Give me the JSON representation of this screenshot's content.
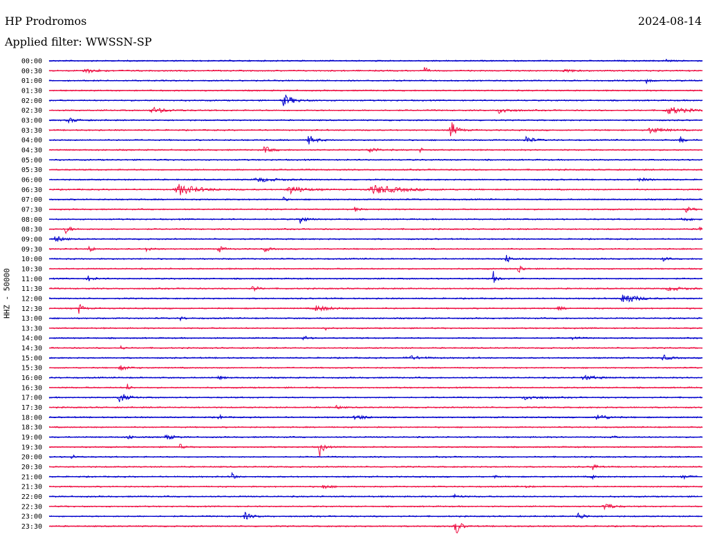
{
  "header": {
    "station": "HP Prodromos",
    "date": "2024-08-14",
    "filter": "Applied filter: WWSSN-SP"
  },
  "chart_data": {
    "type": "line",
    "title": "HP Prodromos",
    "ylabel": "HHZ - 50000",
    "colors": {
      "even": "#0000cc",
      "odd": "#ee1144"
    },
    "rows": [
      {
        "label": "00:00",
        "events": [
          {
            "t": 0.945,
            "a": 3,
            "w": 0.006
          }
        ]
      },
      {
        "label": "00:30",
        "events": [
          {
            "t": 0.055,
            "a": 3,
            "w": 0.03
          },
          {
            "t": 0.575,
            "a": 5,
            "w": 0.008
          },
          {
            "t": 0.79,
            "a": 3,
            "w": 0.015
          }
        ]
      },
      {
        "label": "01:00",
        "events": [
          {
            "t": 0.915,
            "a": 4,
            "w": 0.01
          }
        ]
      },
      {
        "label": "01:30",
        "events": []
      },
      {
        "label": "02:00",
        "events": [
          {
            "t": 0.36,
            "a": 9,
            "w": 0.02
          }
        ]
      },
      {
        "label": "02:30",
        "events": [
          {
            "t": 0.16,
            "a": 4,
            "w": 0.03
          },
          {
            "t": 0.69,
            "a": 5,
            "w": 0.02
          },
          {
            "t": 0.95,
            "a": 5,
            "w": 0.04
          }
        ]
      },
      {
        "label": "03:00",
        "events": [
          {
            "t": 0.03,
            "a": 3,
            "w": 0.02
          }
        ]
      },
      {
        "label": "03:30",
        "events": [
          {
            "t": 0.615,
            "a": 14,
            "w": 0.012
          },
          {
            "t": 0.92,
            "a": 4,
            "w": 0.03
          }
        ]
      },
      {
        "label": "04:00",
        "events": [
          {
            "t": 0.398,
            "a": 7,
            "w": 0.015
          },
          {
            "t": 0.73,
            "a": 6,
            "w": 0.015
          },
          {
            "t": 0.966,
            "a": 6,
            "w": 0.008
          }
        ]
      },
      {
        "label": "04:30",
        "events": [
          {
            "t": 0.33,
            "a": 5,
            "w": 0.015
          },
          {
            "t": 0.49,
            "a": 5,
            "w": 0.015
          },
          {
            "t": 0.567,
            "a": 4,
            "w": 0.006
          }
        ]
      },
      {
        "label": "05:00",
        "events": []
      },
      {
        "label": "05:30",
        "events": []
      },
      {
        "label": "06:00",
        "events": [
          {
            "t": 0.32,
            "a": 3,
            "w": 0.04
          },
          {
            "t": 0.905,
            "a": 2,
            "w": 0.02
          }
        ]
      },
      {
        "label": "06:30",
        "events": [
          {
            "t": 0.2,
            "a": 8,
            "w": 0.04
          },
          {
            "t": 0.37,
            "a": 6,
            "w": 0.03
          },
          {
            "t": 0.5,
            "a": 6,
            "w": 0.06
          }
        ]
      },
      {
        "label": "07:00",
        "events": [
          {
            "t": 0.358,
            "a": 4,
            "w": 0.006
          }
        ]
      },
      {
        "label": "07:30",
        "events": [
          {
            "t": 0.468,
            "a": 3,
            "w": 0.01
          },
          {
            "t": 0.975,
            "a": 4,
            "w": 0.012
          }
        ]
      },
      {
        "label": "08:00",
        "events": [
          {
            "t": 0.385,
            "a": 6,
            "w": 0.012
          },
          {
            "t": 0.97,
            "a": 3,
            "w": 0.02
          }
        ]
      },
      {
        "label": "08:30",
        "events": [
          {
            "t": 0.025,
            "a": 6,
            "w": 0.012
          },
          {
            "t": 0.995,
            "a": 6,
            "w": 0.006
          }
        ]
      },
      {
        "label": "09:00",
        "events": [
          {
            "t": 0.01,
            "a": 7,
            "w": 0.012
          }
        ]
      },
      {
        "label": "09:30",
        "events": [
          {
            "t": 0.062,
            "a": 6,
            "w": 0.008
          },
          {
            "t": 0.15,
            "a": 4,
            "w": 0.01
          },
          {
            "t": 0.26,
            "a": 5,
            "w": 0.01
          },
          {
            "t": 0.33,
            "a": 4,
            "w": 0.01
          }
        ]
      },
      {
        "label": "10:00",
        "events": [
          {
            "t": 0.7,
            "a": 6,
            "w": 0.01
          },
          {
            "t": 0.94,
            "a": 3,
            "w": 0.01
          }
        ]
      },
      {
        "label": "10:30",
        "events": [
          {
            "t": 0.718,
            "a": 9,
            "w": 0.008
          }
        ]
      },
      {
        "label": "11:00",
        "events": [
          {
            "t": 0.06,
            "a": 4,
            "w": 0.012
          },
          {
            "t": 0.68,
            "a": 10,
            "w": 0.008
          }
        ]
      },
      {
        "label": "11:30",
        "events": [
          {
            "t": 0.312,
            "a": 5,
            "w": 0.01
          },
          {
            "t": 0.95,
            "a": 3,
            "w": 0.03
          }
        ]
      },
      {
        "label": "12:00",
        "events": [
          {
            "t": 0.88,
            "a": 9,
            "w": 0.025
          }
        ]
      },
      {
        "label": "12:30",
        "events": [
          {
            "t": 0.045,
            "a": 10,
            "w": 0.008
          },
          {
            "t": 0.41,
            "a": 4,
            "w": 0.03
          },
          {
            "t": 0.78,
            "a": 3,
            "w": 0.01
          }
        ]
      },
      {
        "label": "13:00",
        "events": [
          {
            "t": 0.2,
            "a": 3,
            "w": 0.01
          }
        ]
      },
      {
        "label": "13:30",
        "events": [
          {
            "t": 0.42,
            "a": 5,
            "w": 0.006
          }
        ]
      },
      {
        "label": "14:00",
        "events": [
          {
            "t": 0.39,
            "a": 4,
            "w": 0.008
          },
          {
            "t": 0.8,
            "a": 3,
            "w": 0.01
          }
        ]
      },
      {
        "label": "14:30",
        "events": [
          {
            "t": 0.11,
            "a": 3,
            "w": 0.006
          }
        ]
      },
      {
        "label": "15:00",
        "events": [
          {
            "t": 0.55,
            "a": 3,
            "w": 0.03
          },
          {
            "t": 0.94,
            "a": 4,
            "w": 0.015
          }
        ]
      },
      {
        "label": "15:30",
        "events": [
          {
            "t": 0.11,
            "a": 3,
            "w": 0.02
          }
        ]
      },
      {
        "label": "16:00",
        "events": [
          {
            "t": 0.26,
            "a": 3,
            "w": 0.01
          },
          {
            "t": 0.82,
            "a": 3,
            "w": 0.03
          }
        ]
      },
      {
        "label": "16:30",
        "events": [
          {
            "t": 0.12,
            "a": 5,
            "w": 0.006
          }
        ]
      },
      {
        "label": "17:00",
        "events": [
          {
            "t": 0.108,
            "a": 8,
            "w": 0.015
          },
          {
            "t": 0.73,
            "a": 3,
            "w": 0.03
          }
        ]
      },
      {
        "label": "17:30",
        "events": [
          {
            "t": 0.44,
            "a": 3,
            "w": 0.01
          }
        ]
      },
      {
        "label": "18:00",
        "events": [
          {
            "t": 0.26,
            "a": 4,
            "w": 0.008
          },
          {
            "t": 0.47,
            "a": 4,
            "w": 0.02
          },
          {
            "t": 0.84,
            "a": 5,
            "w": 0.02
          }
        ]
      },
      {
        "label": "18:30",
        "events": []
      },
      {
        "label": "19:00",
        "events": [
          {
            "t": 0.12,
            "a": 4,
            "w": 0.01
          },
          {
            "t": 0.18,
            "a": 4,
            "w": 0.015
          },
          {
            "t": 0.86,
            "a": 4,
            "w": 0.006
          }
        ]
      },
      {
        "label": "19:30",
        "events": [
          {
            "t": 0.2,
            "a": 5,
            "w": 0.006
          },
          {
            "t": 0.414,
            "a": 15,
            "w": 0.008
          }
        ]
      },
      {
        "label": "20:00",
        "events": [
          {
            "t": 0.035,
            "a": 4,
            "w": 0.008
          }
        ]
      },
      {
        "label": "20:30",
        "events": [
          {
            "t": 0.832,
            "a": 6,
            "w": 0.008
          }
        ]
      },
      {
        "label": "21:00",
        "events": [
          {
            "t": 0.28,
            "a": 10,
            "w": 0.005
          },
          {
            "t": 0.68,
            "a": 3,
            "w": 0.006
          },
          {
            "t": 0.83,
            "a": 5,
            "w": 0.006
          },
          {
            "t": 0.97,
            "a": 3,
            "w": 0.015
          }
        ]
      },
      {
        "label": "21:30",
        "events": [
          {
            "t": 0.42,
            "a": 3,
            "w": 0.015
          },
          {
            "t": 0.73,
            "a": 3,
            "w": 0.006
          }
        ]
      },
      {
        "label": "22:00",
        "events": [
          {
            "t": 0.62,
            "a": 3,
            "w": 0.012
          }
        ]
      },
      {
        "label": "22:30",
        "events": [
          {
            "t": 0.85,
            "a": 7,
            "w": 0.015
          }
        ]
      },
      {
        "label": "23:00",
        "events": [
          {
            "t": 0.3,
            "a": 5,
            "w": 0.015
          },
          {
            "t": 0.81,
            "a": 5,
            "w": 0.015
          }
        ]
      },
      {
        "label": "23:30",
        "events": [
          {
            "t": 0.622,
            "a": 16,
            "w": 0.01
          }
        ]
      }
    ]
  }
}
